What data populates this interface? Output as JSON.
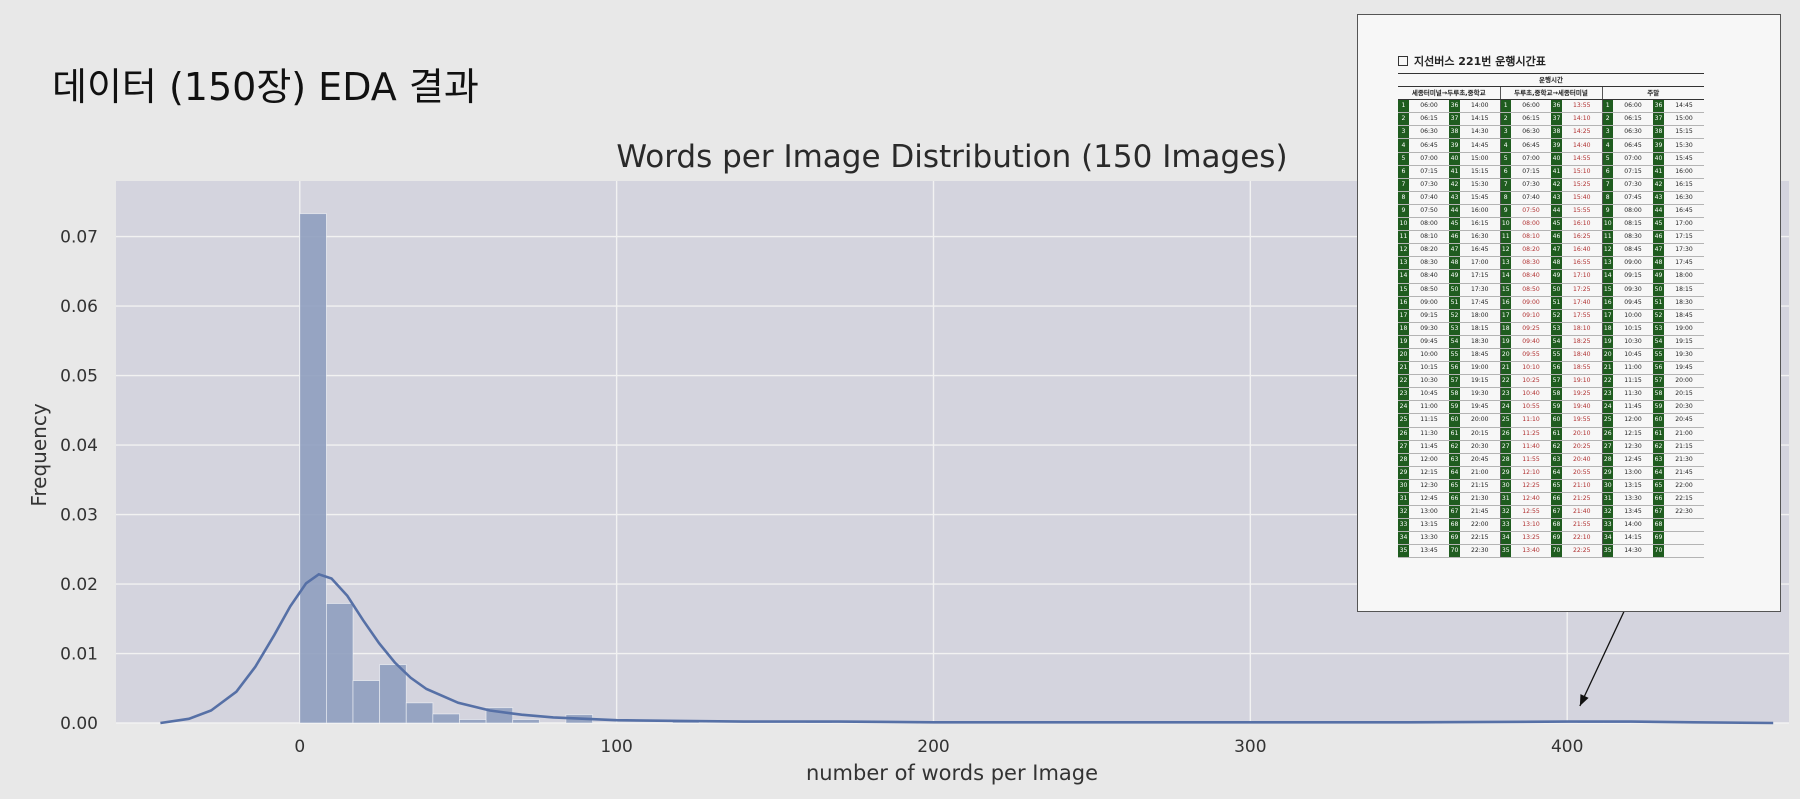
{
  "slide": {
    "title": "데이터 (150장) EDA 결과"
  },
  "colors": {
    "bar": "#8f9fbf",
    "kde_line": "#5670a6",
    "plot_bg": "#d4d4de",
    "grid": "#f2f2f2",
    "timetable_accent": "#1f5c1f",
    "timetable_red": "#b03030"
  },
  "chart_data": {
    "type": "bar",
    "title": "Words per Image Distribution (150 Images)",
    "xlabel": "number of words per Image",
    "ylabel": "Frequency",
    "xlim": [
      -58,
      470
    ],
    "ylim": [
      0,
      0.078
    ],
    "xticks": [
      0,
      100,
      200,
      300,
      400
    ],
    "yticks": [
      0.0,
      0.01,
      0.02,
      0.03,
      0.04,
      0.05,
      0.06,
      0.07
    ],
    "xtick_labels": [
      "0",
      "100",
      "200",
      "300",
      "400"
    ],
    "ytick_labels": [
      "0.00",
      "0.01",
      "0.02",
      "0.03",
      "0.04",
      "0.05",
      "0.06",
      "0.07"
    ],
    "grid": true,
    "bin_width": 8.4,
    "bins": [
      {
        "x0": 0,
        "x1": 8.4,
        "y": 0.0733
      },
      {
        "x0": 8.4,
        "x1": 16.8,
        "y": 0.0172
      },
      {
        "x0": 16.8,
        "x1": 25.2,
        "y": 0.0061
      },
      {
        "x0": 25.2,
        "x1": 33.6,
        "y": 0.0084
      },
      {
        "x0": 33.6,
        "x1": 42.0,
        "y": 0.0029
      },
      {
        "x0": 42.0,
        "x1": 50.4,
        "y": 0.0013
      },
      {
        "x0": 50.4,
        "x1": 58.8,
        "y": 0.0005
      },
      {
        "x0": 58.8,
        "x1": 67.2,
        "y": 0.0022
      },
      {
        "x0": 67.2,
        "x1": 75.6,
        "y": 0.0005
      },
      {
        "x0": 84.0,
        "x1": 92.4,
        "y": 0.0012
      },
      {
        "x0": 117.6,
        "x1": 126.0,
        "y": 0.0003
      },
      {
        "x0": 159.6,
        "x1": 168.0,
        "y": 0.0003
      },
      {
        "x0": 403.2,
        "x1": 411.6,
        "y": 0.0002
      },
      {
        "x0": 411.6,
        "x1": 420.0,
        "y": 0.0003
      }
    ],
    "kde": {
      "x": [
        -44,
        -35,
        -28,
        -20,
        -14,
        -8,
        -3,
        2,
        6,
        10,
        15,
        20,
        25,
        30,
        35,
        40,
        50,
        60,
        70,
        80,
        90,
        100,
        120,
        140,
        170,
        200,
        250,
        300,
        350,
        400,
        420,
        440,
        465
      ],
      "y": [
        0.0,
        0.0006,
        0.0018,
        0.0045,
        0.0081,
        0.0127,
        0.0168,
        0.0201,
        0.0214,
        0.0208,
        0.0183,
        0.0148,
        0.0115,
        0.0087,
        0.0065,
        0.0049,
        0.0029,
        0.0018,
        0.0012,
        0.0008,
        0.0006,
        0.0004,
        0.0003,
        0.0002,
        0.0002,
        0.0001,
        0.0001,
        0.0001,
        0.0001,
        0.0002,
        0.0002,
        0.0001,
        0.0
      ]
    },
    "annotation": {
      "type": "arrow",
      "from_x": 418,
      "to_x": 404
    }
  },
  "timetable": {
    "title": "지선버스 221번 운행시간표",
    "group_header": "운행시간",
    "headers": [
      "세종터미널→두루초,중학교",
      "두루초,중학교→세종터미널",
      "주말"
    ],
    "col1_a": [
      "06:00",
      "06:15",
      "06:30",
      "06:45",
      "07:00",
      "07:15",
      "07:30",
      "07:40",
      "07:50",
      "08:00",
      "08:10",
      "08:20",
      "08:30",
      "08:40",
      "08:50",
      "09:00",
      "09:15",
      "09:30",
      "09:45",
      "10:00",
      "10:15",
      "10:30",
      "10:45",
      "11:00",
      "11:15",
      "11:30",
      "11:45",
      "12:00",
      "12:15",
      "12:30",
      "12:45",
      "13:00",
      "13:15",
      "13:30",
      "13:45"
    ],
    "col1_b": [
      "14:00",
      "14:15",
      "14:30",
      "14:45",
      "15:00",
      "15:15",
      "15:30",
      "15:45",
      "16:00",
      "16:15",
      "16:30",
      "16:45",
      "17:00",
      "17:15",
      "17:30",
      "17:45",
      "18:00",
      "18:15",
      "18:30",
      "18:45",
      "19:00",
      "19:15",
      "19:30",
      "19:45",
      "20:00",
      "20:15",
      "20:30",
      "20:45",
      "21:00",
      "21:15",
      "21:30",
      "21:45",
      "22:00",
      "22:15",
      "22:30"
    ],
    "col2_a": [
      "06:00",
      "06:15",
      "06:30",
      "06:45",
      "07:00",
      "07:15",
      "07:30",
      "07:40",
      "07:50",
      "08:00",
      "08:10",
      "08:20",
      "08:30",
      "08:40",
      "08:50",
      "09:00",
      "09:10",
      "09:25",
      "09:40",
      "09:55",
      "10:10",
      "10:25",
      "10:40",
      "10:55",
      "11:10",
      "11:25",
      "11:40",
      "11:55",
      "12:10",
      "12:25",
      "12:40",
      "12:55",
      "13:10",
      "13:25",
      "13:40"
    ],
    "col2_b": [
      "13:55",
      "14:10",
      "14:25",
      "14:40",
      "14:55",
      "15:10",
      "15:25",
      "15:40",
      "15:55",
      "16:10",
      "16:25",
      "16:40",
      "16:55",
      "17:10",
      "17:25",
      "17:40",
      "17:55",
      "18:10",
      "18:25",
      "18:40",
      "18:55",
      "19:10",
      "19:25",
      "19:40",
      "19:55",
      "20:10",
      "20:25",
      "20:40",
      "20:55",
      "21:10",
      "21:25",
      "21:40",
      "21:55",
      "22:10",
      "22:25"
    ],
    "col3_a": [
      "06:00",
      "06:15",
      "06:30",
      "06:45",
      "07:00",
      "07:15",
      "07:30",
      "07:45",
      "08:00",
      "08:15",
      "08:30",
      "08:45",
      "09:00",
      "09:15",
      "09:30",
      "09:45",
      "10:00",
      "10:15",
      "10:30",
      "10:45",
      "11:00",
      "11:15",
      "11:30",
      "11:45",
      "12:00",
      "12:15",
      "12:30",
      "12:45",
      "13:00",
      "13:15",
      "13:30",
      "13:45",
      "14:00",
      "14:15",
      "14:30"
    ],
    "col3_b": [
      "14:45",
      "15:00",
      "15:15",
      "15:30",
      "15:45",
      "16:00",
      "16:15",
      "16:30",
      "16:45",
      "17:00",
      "17:15",
      "17:30",
      "17:45",
      "18:00",
      "18:15",
      "18:30",
      "18:45",
      "19:00",
      "19:15",
      "19:30",
      "19:45",
      "20:00",
      "20:15",
      "20:30",
      "20:45",
      "21:00",
      "21:15",
      "21:30",
      "21:45",
      "22:00",
      "22:15",
      "22:30",
      "",
      "",
      ""
    ]
  }
}
